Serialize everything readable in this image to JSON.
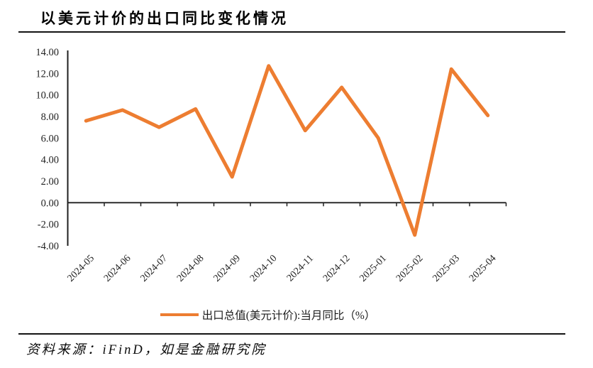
{
  "page": {
    "title": "以美元计价的出口同比变化情况",
    "source_note": "资料来源：iFinD，如是金融研究院"
  },
  "legend": {
    "label": "出口总值(美元计价):当月同比（%）"
  },
  "colors": {
    "line": "#ED7D31",
    "axis": "#1f1f1f",
    "tick_text": "#1f1f1f"
  },
  "chart_data": {
    "type": "line",
    "title": "以美元计价的出口同比变化情况",
    "categories": [
      "2024-05",
      "2024-06",
      "2024-07",
      "2024-08",
      "2024-09",
      "2024-10",
      "2024-11",
      "2024-12",
      "2025-01",
      "2025-02",
      "2025-03",
      "2025-04"
    ],
    "series": [
      {
        "name": "出口总值(美元计价):当月同比（%）",
        "values": [
          7.6,
          8.6,
          7.0,
          8.7,
          2.4,
          12.7,
          6.7,
          10.7,
          6.0,
          -3.0,
          12.4,
          8.1
        ]
      }
    ],
    "xlabel": "",
    "ylabel": "",
    "ylim": [
      -4,
      14
    ],
    "ytick_step": 2,
    "ytick_decimals": 2,
    "grid": false,
    "legend_position": "bottom"
  }
}
